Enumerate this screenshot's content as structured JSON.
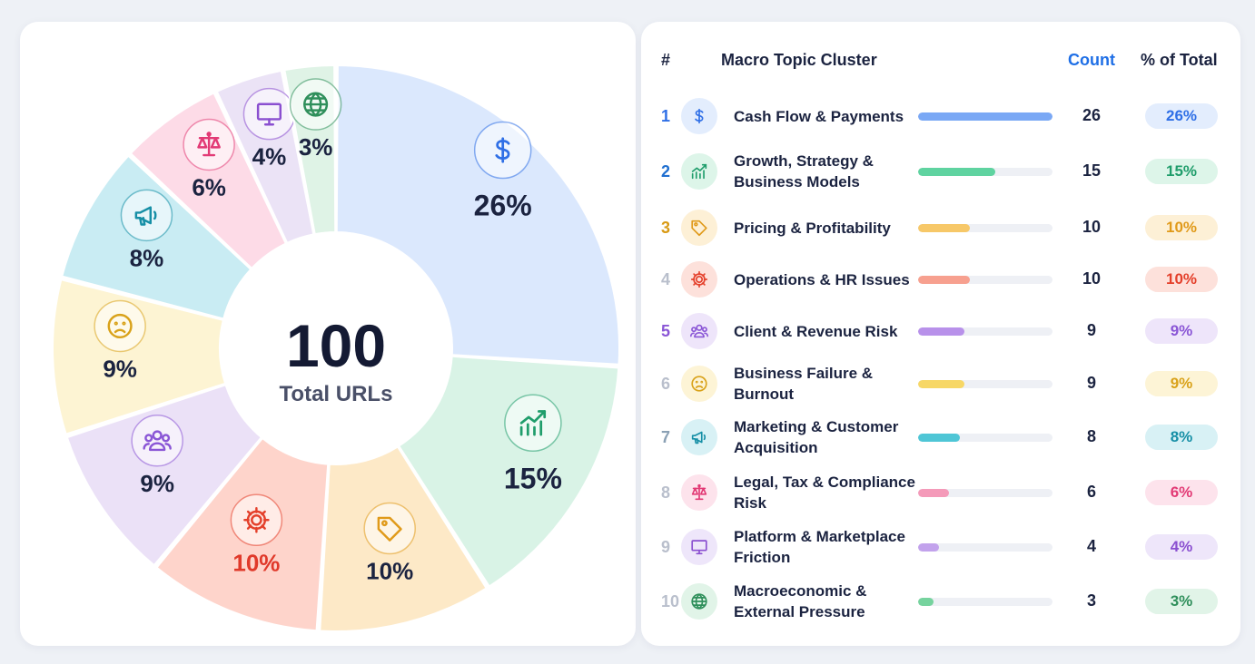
{
  "chart_data": {
    "type": "pie",
    "center": {
      "value": "100",
      "label": "Total URLs"
    },
    "slices": [
      {
        "rank": "1",
        "label": "Cash Flow & Payments",
        "count": "26",
        "value": 26,
        "percent": "26%",
        "icon": "dollar-icon",
        "fill": "#dbe8fd",
        "accent": "#2f6fe6",
        "bar": "#7aa8f5",
        "pill_bg": "#e3edfd",
        "rank_color": "#2f6fe6",
        "pct_text": "#1b2340"
      },
      {
        "rank": "2",
        "label": "Growth, Strategy & Business Models",
        "count": "15",
        "value": 15,
        "percent": "15%",
        "icon": "growth-chart-icon",
        "fill": "#d9f3e6",
        "accent": "#1f9d6b",
        "bar": "#5fd3a0",
        "pill_bg": "#ddf5e9",
        "rank_color": "#1f6fd0",
        "pct_text": "#1b2340"
      },
      {
        "rank": "3",
        "label": "Pricing & Profitability",
        "count": "10",
        "value": 10,
        "percent": "10%",
        "icon": "price-tag-icon",
        "fill": "#fde9c7",
        "accent": "#e09a1a",
        "bar": "#f7c868",
        "pill_bg": "#fdf0d6",
        "rank_color": "#d99a14",
        "pct_text": "#1b2340"
      },
      {
        "rank": "4",
        "label": "Operations & HR Issues",
        "count": "10",
        "value": 10,
        "percent": "10%",
        "icon": "gear-icon",
        "fill": "#fed4cb",
        "accent": "#e4402b",
        "bar": "#f7a08f",
        "pill_bg": "#fde1db",
        "rank_color": "#b9bfcc",
        "pct_text": "#e0392a"
      },
      {
        "rank": "5",
        "label": "Client & Revenue Risk",
        "count": "9",
        "value": 9,
        "percent": "9%",
        "icon": "users-icon",
        "fill": "#ebe1f7",
        "accent": "#8a56d6",
        "bar": "#b891ea",
        "pill_bg": "#eee5fa",
        "rank_color": "#8a56d6",
        "pct_text": "#1b2340"
      },
      {
        "rank": "6",
        "label": "Business Failure & Burnout",
        "count": "9",
        "value": 9,
        "percent": "9%",
        "icon": "sad-face-icon",
        "fill": "#fdf4d3",
        "accent": "#d9a21a",
        "bar": "#f7d766",
        "pill_bg": "#fdf4d6",
        "rank_color": "#b9bfcc",
        "pct_text": "#1b2340"
      },
      {
        "rank": "7",
        "label": "Marketing & Customer Acquisition",
        "count": "8",
        "value": 8,
        "percent": "8%",
        "icon": "megaphone-icon",
        "fill": "#c9ecf3",
        "accent": "#168fa6",
        "bar": "#4fc6d6",
        "pill_bg": "#d8f1f5",
        "rank_color": "#8aa0b4",
        "pct_text": "#1b2340"
      },
      {
        "rank": "8",
        "label": "Legal, Tax & Compliance Risk",
        "count": "6",
        "value": 6,
        "percent": "6%",
        "icon": "scales-icon",
        "fill": "#fddbe7",
        "accent": "#e23a75",
        "bar": "#f49ab9",
        "pill_bg": "#fde3ec",
        "rank_color": "#b9bfcc",
        "pct_text": "#1b2340"
      },
      {
        "rank": "9",
        "label": "Platform & Marketplace Friction",
        "count": "4",
        "value": 4,
        "percent": "4%",
        "icon": "monitor-icon",
        "fill": "#ebe3f6",
        "accent": "#8a4fd0",
        "bar": "#c2a2ec",
        "pill_bg": "#eee6fa",
        "rank_color": "#b9bfcc",
        "pct_text": "#1b2340"
      },
      {
        "rank": "10",
        "label": "Macroeconomic & External Pressure",
        "count": "3",
        "value": 3,
        "percent": "3%",
        "icon": "globe-icon",
        "fill": "#dff3e6",
        "accent": "#2f8f5b",
        "bar": "#76d39e",
        "pill_bg": "#e1f4e8",
        "rank_color": "#b9bfcc",
        "pct_text": "#1b2340"
      }
    ]
  },
  "table": {
    "headers": {
      "rank": "#",
      "cluster": "Macro Topic Cluster",
      "count": "Count",
      "percent": "% of Total"
    },
    "header_count_color": "#1f6fe6"
  }
}
